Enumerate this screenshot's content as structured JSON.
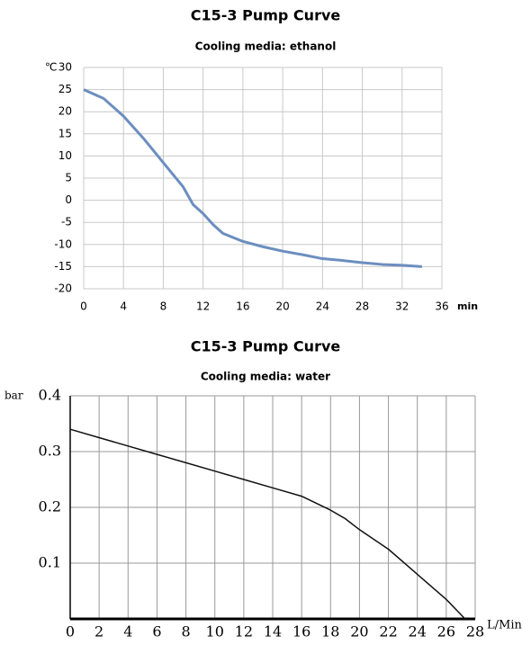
{
  "chart_data": [
    {
      "type": "line",
      "title": "C15-3 Pump Curve",
      "subtitle": "Cooling media: ethanol",
      "y_label": "℃",
      "x_label": "min",
      "x": [
        0,
        1,
        2,
        4,
        6,
        8,
        10,
        11,
        12,
        13,
        14,
        16,
        18,
        20,
        22,
        24,
        26,
        28,
        30,
        32,
        34
      ],
      "series": [
        {
          "name": "ethanol",
          "color": "#6c8ebf",
          "values": [
            25,
            24,
            23,
            19,
            14,
            8.5,
            3,
            -1,
            -3,
            -5.5,
            -7.5,
            -9.3,
            -10.5,
            -11.5,
            -12.3,
            -13.2,
            -13.6,
            -14.1,
            -14.5,
            -14.7,
            -15
          ]
        }
      ],
      "xlim": [
        0,
        36
      ],
      "xticks": [
        0,
        4,
        8,
        12,
        16,
        20,
        24,
        28,
        32,
        36
      ],
      "ylim": [
        -20,
        30
      ],
      "yticks": [
        -20,
        -15,
        -10,
        -5,
        0,
        5,
        10,
        15,
        20,
        25,
        30
      ],
      "grid": true
    },
    {
      "type": "line",
      "title": "C15-3 Pump Curve",
      "subtitle": "Cooling media: water",
      "y_label": "bar",
      "x_label": "L/Min",
      "x": [
        0,
        2,
        4,
        6,
        8,
        10,
        12,
        14,
        16,
        18,
        19,
        20,
        22,
        24,
        26,
        27.3
      ],
      "series": [
        {
          "name": "water",
          "color": "#111111",
          "values": [
            0.34,
            0.325,
            0.31,
            0.295,
            0.28,
            0.265,
            0.25,
            0.235,
            0.22,
            0.195,
            0.18,
            0.16,
            0.125,
            0.08,
            0.035,
            0
          ]
        }
      ],
      "xlim": [
        0,
        28
      ],
      "xticks": [
        0,
        2,
        4,
        6,
        8,
        10,
        12,
        14,
        16,
        18,
        20,
        22,
        24,
        26,
        28
      ],
      "ylim": [
        0,
        0.4
      ],
      "yticks": [
        0.1,
        0.2,
        0.3,
        0.4
      ],
      "grid": true
    }
  ]
}
